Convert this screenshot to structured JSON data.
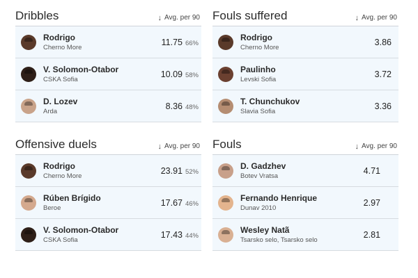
{
  "cards": [
    {
      "title": "Dribbles",
      "metric": "Avg. per 90",
      "arrow_icon": "down-arrow-icon",
      "players": [
        {
          "name": "Rodrigo",
          "team": "Cherno More",
          "value": "11.75",
          "pct": "66%",
          "avatar_color": "#5a3a2a"
        },
        {
          "name": "V. Solomon-Otabor",
          "team": "CSKA Sofia",
          "value": "10.09",
          "pct": "58%",
          "avatar_color": "#2e1f18"
        },
        {
          "name": "D. Lozev",
          "team": "Arda",
          "value": "8.36",
          "pct": "48%",
          "avatar_color": "#c9a38a"
        }
      ]
    },
    {
      "title": "Fouls suffered",
      "metric": "Avg. per 90",
      "arrow_icon": "down-arrow-icon",
      "players": [
        {
          "name": "Rodrigo",
          "team": "Cherno More",
          "value": "3.86",
          "pct": "",
          "avatar_color": "#5a3a2a"
        },
        {
          "name": "Paulinho",
          "team": "Levski Sofia",
          "value": "3.72",
          "pct": "",
          "avatar_color": "#6b4030"
        },
        {
          "name": "T. Chunchukov",
          "team": "Slavia Sofia",
          "value": "3.36",
          "pct": "",
          "avatar_color": "#b58d72"
        }
      ]
    },
    {
      "title": "Offensive duels",
      "metric": "Avg. per 90",
      "arrow_icon": "down-arrow-icon",
      "players": [
        {
          "name": "Rodrigo",
          "team": "Cherno More",
          "value": "23.91",
          "pct": "52%",
          "avatar_color": "#5a3a2a"
        },
        {
          "name": "Rúben Brígido",
          "team": "Beroe",
          "value": "17.67",
          "pct": "46%",
          "avatar_color": "#d4a98e"
        },
        {
          "name": "V. Solomon-Otabor",
          "team": "CSKA Sofia",
          "value": "17.43",
          "pct": "44%",
          "avatar_color": "#2e1f18"
        }
      ]
    },
    {
      "title": "Fouls",
      "metric": "Avg. per 90",
      "arrow_icon": "down-arrow-icon",
      "players": [
        {
          "name": "D. Gadzhev",
          "team": "Botev Vratsa",
          "value": "4.71",
          "pct": "",
          "avatar_color": "#c8a08a"
        },
        {
          "name": "Fernando Henrique",
          "team": "Dunav 2010",
          "value": "2.97",
          "pct": "",
          "avatar_color": "#e3b48e"
        },
        {
          "name": "Wesley Natã",
          "team": "Tsarsko selo, Tsarsko selo",
          "value": "2.81",
          "pct": "",
          "avatar_color": "#d9b093"
        }
      ]
    }
  ]
}
